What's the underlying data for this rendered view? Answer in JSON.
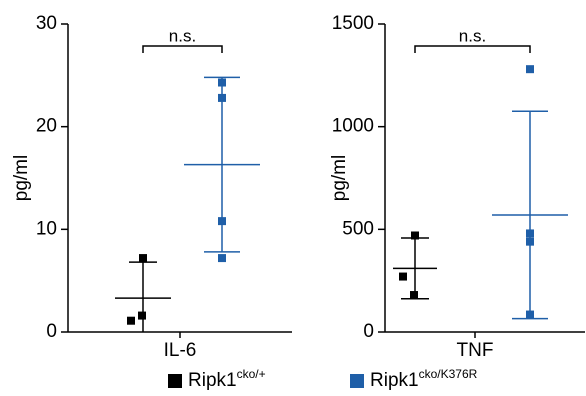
{
  "chart_data": [
    {
      "type": "scatter",
      "ylabel": "pg/ml",
      "xlabel": "IL-6",
      "ylim": [
        0,
        30
      ],
      "yticks": [
        0,
        10,
        20,
        30
      ],
      "annotation": "n.s.",
      "series": [
        {
          "name": "Ripk1",
          "name_sup": "cko/+",
          "color": "#000000",
          "values": [
            7.2,
            1.1,
            1.6
          ],
          "mean": 3.3,
          "sd": 3.5
        },
        {
          "name": "Ripk1",
          "name_sup": "cko/K376R",
          "color": "#1f5fa8",
          "values": [
            24.3,
            22.8,
            10.8,
            7.2
          ],
          "mean": 16.3,
          "sd": 8.5
        }
      ]
    },
    {
      "type": "scatter",
      "ylabel": "pg/ml",
      "xlabel": "TNF",
      "ylim": [
        0,
        1500
      ],
      "yticks": [
        0,
        500,
        1000,
        1500
      ],
      "annotation": "n.s.",
      "series": [
        {
          "color": "#000000",
          "values": [
            470,
            270,
            180
          ],
          "mean": 310,
          "sd": 148
        },
        {
          "color": "#1f5fa8",
          "values": [
            1280,
            480,
            440,
            85
          ],
          "mean": 570,
          "sd": 505
        }
      ]
    }
  ]
}
